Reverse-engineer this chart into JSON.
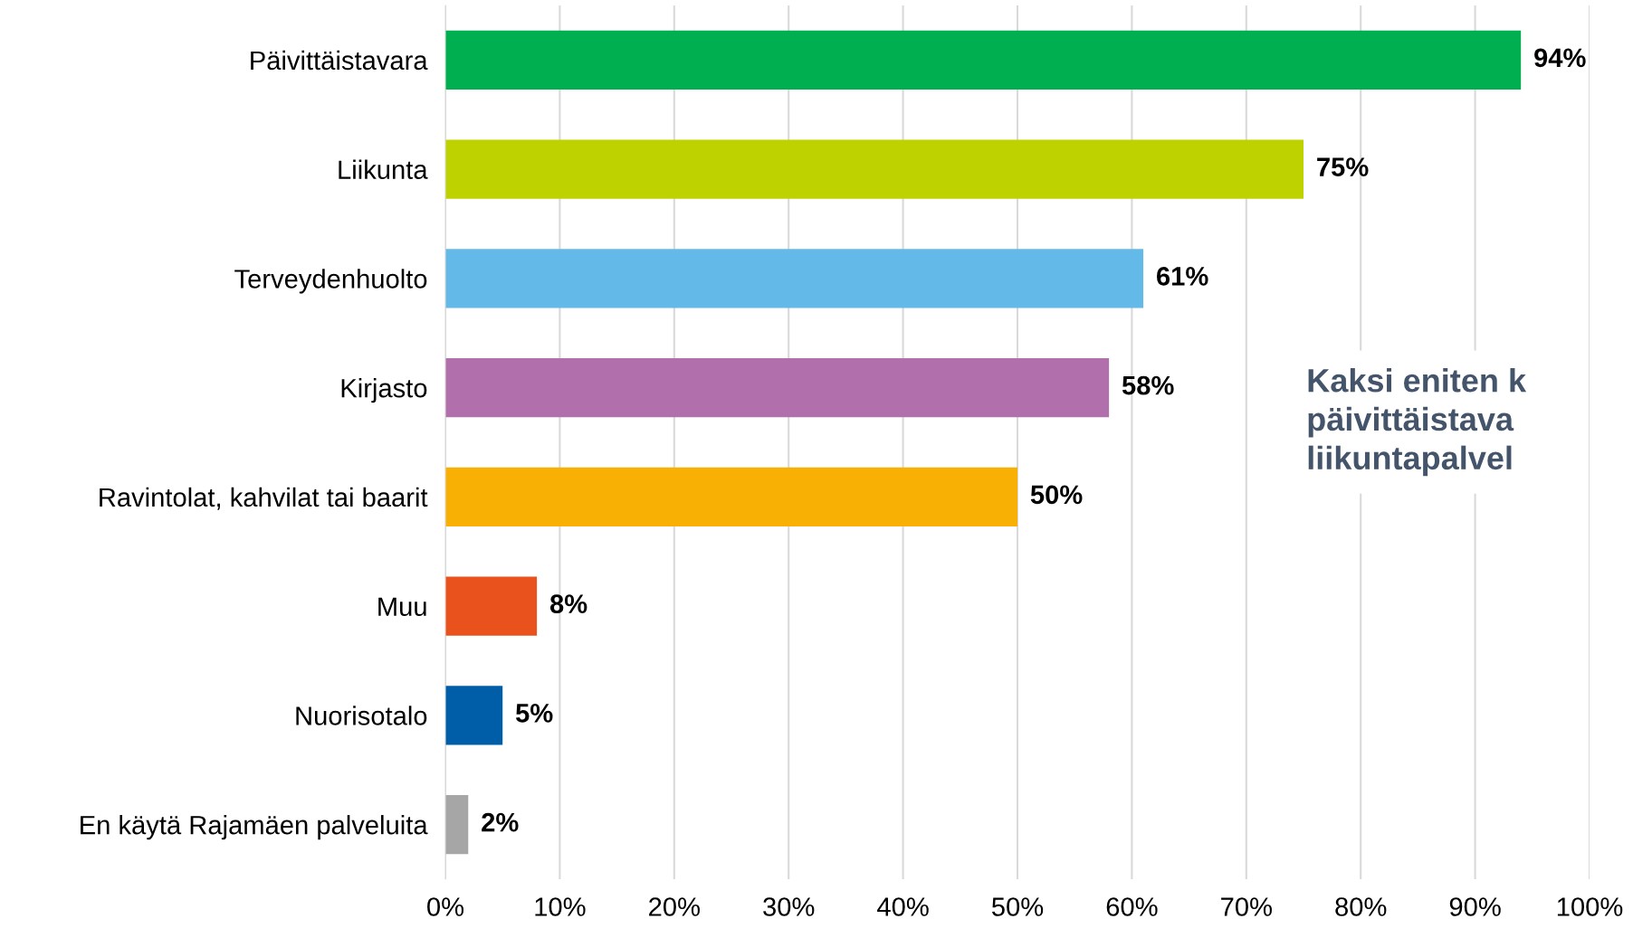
{
  "chart_data": {
    "type": "bar",
    "orientation": "horizontal",
    "categories": [
      "Päivittäistavara",
      "Liikunta",
      "Terveydenhuolto",
      "Kirjasto",
      "Ravintolat, kahvilat tai baarit",
      "Muu",
      "Nuorisotalo",
      "En käytä Rajamäen palveluita"
    ],
    "values": [
      94,
      75,
      61,
      58,
      50,
      8,
      5,
      2
    ],
    "colors": [
      "#00b050",
      "#bed200",
      "#63b9e8",
      "#b170ab",
      "#f8b004",
      "#e9511d",
      "#005ea8",
      "#a6a6a6"
    ],
    "value_labels": [
      "94%",
      "75%",
      "61%",
      "58%",
      "50%",
      "8%",
      "5%",
      "2%"
    ],
    "xlim": [
      0,
      100
    ],
    "xticks": [
      {
        "value": 0,
        "label": "0%"
      },
      {
        "value": 10,
        "label": "10%"
      },
      {
        "value": 20,
        "label": "20%"
      },
      {
        "value": 30,
        "label": "30%"
      },
      {
        "value": 40,
        "label": "40%"
      },
      {
        "value": 50,
        "label": "50%"
      },
      {
        "value": 60,
        "label": "60%"
      },
      {
        "value": 70,
        "label": "70%"
      },
      {
        "value": 80,
        "label": "80%"
      },
      {
        "value": 90,
        "label": "90%"
      },
      {
        "value": 100,
        "label": "100%"
      }
    ],
    "grid": "x",
    "annotations": [
      "Kaksi eniten k\npäivittäistava\nliikuntapalvel"
    ]
  }
}
